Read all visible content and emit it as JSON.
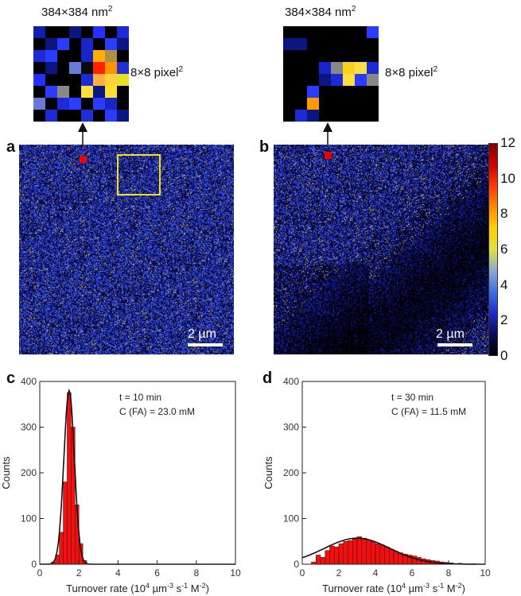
{
  "panels": {
    "a": {
      "letter": "a",
      "zoom_size": "384×384 nm",
      "zoom_size_sup": "2",
      "zoom_pixels": "8×8 pixel",
      "zoom_pixels_sup": "2",
      "scale_bar": "2 µm"
    },
    "b": {
      "letter": "b",
      "zoom_size": "384×384 nm",
      "zoom_size_sup": "2",
      "zoom_pixels": "8×8 pixel",
      "zoom_pixels_sup": "2",
      "scale_bar": "2 µm"
    },
    "c": {
      "letter": "c",
      "ann_time": "t = 10 min",
      "ann_conc": "C (FA) = 23.0 mM"
    },
    "d": {
      "letter": "d",
      "ann_time": "t = 30 min",
      "ann_conc": "C (FA) = 11.5 mM"
    }
  },
  "colorbar": {
    "ticks": [
      "12",
      "10",
      "8",
      "6",
      "4",
      "2",
      "0"
    ],
    "stops": [
      "#000000",
      "#0a0a5a",
      "#1e2ccc",
      "#3f6fe0",
      "#8fa8d0",
      "#e0e040",
      "#ffd000",
      "#ff8a00",
      "#ff3a00",
      "#cc0000",
      "#800000"
    ]
  },
  "zoom_grids": {
    "a": [
      [
        "#0f1fb0",
        "#000000",
        "#000000",
        "#0b1680",
        "#000000",
        "#2430ff",
        "#000000",
        "#1c2ad8"
      ],
      [
        "#000000",
        "#0b1680",
        "#2a3cff",
        "#000000",
        "#1826c8",
        "#000000",
        "#2a3cff",
        "#0b1680"
      ],
      [
        "#1c2ad8",
        "#2a3cff",
        "#000000",
        "#000000",
        "#1826c8",
        "#ffb000",
        "#b09040",
        "#000000"
      ],
      [
        "#000000",
        "#0b1680",
        "#000000",
        "#6a7ad8",
        "#0a0a0a",
        "#ff2000",
        "#ff9400",
        "#2030d0"
      ],
      [
        "#2430ff",
        "#000000",
        "#000000",
        "#000000",
        "#1c2ad8",
        "#ffb040",
        "#ffd040",
        "#e8e020"
      ],
      [
        "#000000",
        "#2a3cff",
        "#888888",
        "#000000",
        "#ffe040",
        "#0b1680",
        "#ffe030",
        "#000000"
      ],
      [
        "#6a7ad8",
        "#000000",
        "#1c2ad8",
        "#2a3cff",
        "#000000",
        "#2a3cff",
        "#1826c8",
        "#000000"
      ],
      [
        "#000000",
        "#1c2ad8",
        "#000000",
        "#000000",
        "#2030d0",
        "#000000",
        "#2a3cff",
        "#0b1680"
      ]
    ],
    "b": [
      [
        "#000000",
        "#000000",
        "#000000",
        "#000000",
        "#000000",
        "#000000",
        "#000000",
        "#2a3cff"
      ],
      [
        "#0b1680",
        "#0b1680",
        "#000000",
        "#000000",
        "#000000",
        "#000000",
        "#000000",
        "#000000"
      ],
      [
        "#000000",
        "#000000",
        "#000000",
        "#000000",
        "#000000",
        "#000000",
        "#000000",
        "#000000"
      ],
      [
        "#000000",
        "#000000",
        "#000000",
        "#1826c8",
        "#888888",
        "#ffd020",
        "#ffe040",
        "#1c2ad8"
      ],
      [
        "#000000",
        "#000000",
        "#000000",
        "#0b1680",
        "#1c2ad8",
        "#ffe040",
        "#2a3cff",
        "#888888"
      ],
      [
        "#000000",
        "#000000",
        "#2a3cff",
        "#000000",
        "#000000",
        "#000000",
        "#000000",
        "#000000"
      ],
      [
        "#000000",
        "#000000",
        "#ff9a00",
        "#000000",
        "#000000",
        "#000000",
        "#000000",
        "#000000"
      ],
      [
        "#000000",
        "#1c2ad8",
        "#0b1680",
        "#000000",
        "#000000",
        "#000000",
        "#000000",
        "#000000"
      ]
    ]
  },
  "chart_data": [
    {
      "panel": "c",
      "type": "bar",
      "xlabel": "Turnover rate (10",
      "xlabel_sup": "4",
      "xlabel_rest": " µm",
      "xlabel_sup2": "-3",
      "xlabel_rest2": " s",
      "xlabel_sup3": "-1",
      "xlabel_rest3": " M",
      "xlabel_sup4": "-2",
      "xlabel_end": ")",
      "ylabel": "Counts",
      "xlim": [
        0,
        10
      ],
      "ylim": [
        0,
        400
      ],
      "xticks": [
        "0",
        "2",
        "4",
        "6",
        "8",
        "10"
      ],
      "yticks": [
        "0",
        "100",
        "200",
        "300",
        "400"
      ],
      "bin_width": 0.2,
      "bins": [
        {
          "x": 0.6,
          "count": 5
        },
        {
          "x": 0.8,
          "count": 20
        },
        {
          "x": 1.0,
          "count": 70
        },
        {
          "x": 1.2,
          "count": 180
        },
        {
          "x": 1.4,
          "count": 375
        },
        {
          "x": 1.6,
          "count": 300
        },
        {
          "x": 1.8,
          "count": 130
        },
        {
          "x": 2.0,
          "count": 45
        },
        {
          "x": 2.2,
          "count": 8
        }
      ],
      "fit": {
        "type": "gaussian",
        "amplitude": 380,
        "center": 1.5,
        "sigma": 0.27
      }
    },
    {
      "panel": "d",
      "type": "bar",
      "xlabel": "Turnover rate (10",
      "xlabel_sup": "4",
      "xlabel_rest": " µm",
      "xlabel_sup2": "-3",
      "xlabel_rest2": " s",
      "xlabel_sup3": "-1",
      "xlabel_rest3": " M",
      "xlabel_sup4": "-2",
      "xlabel_end": ")",
      "ylabel": "Counts",
      "xlim": [
        0,
        10
      ],
      "ylim": [
        0,
        400
      ],
      "xticks": [
        "0",
        "2",
        "4",
        "6",
        "8",
        "10"
      ],
      "yticks": [
        "0",
        "100",
        "200",
        "300",
        "400"
      ],
      "bin_width": 0.25,
      "bins": [
        {
          "x": 0.5,
          "count": 5
        },
        {
          "x": 0.75,
          "count": 20
        },
        {
          "x": 1.0,
          "count": 15
        },
        {
          "x": 1.25,
          "count": 30
        },
        {
          "x": 1.5,
          "count": 40
        },
        {
          "x": 1.75,
          "count": 38
        },
        {
          "x": 2.0,
          "count": 45
        },
        {
          "x": 2.25,
          "count": 50
        },
        {
          "x": 2.5,
          "count": 52
        },
        {
          "x": 2.75,
          "count": 55
        },
        {
          "x": 3.0,
          "count": 60
        },
        {
          "x": 3.25,
          "count": 57
        },
        {
          "x": 3.5,
          "count": 53
        },
        {
          "x": 3.75,
          "count": 50
        },
        {
          "x": 4.0,
          "count": 45
        },
        {
          "x": 4.25,
          "count": 42
        },
        {
          "x": 4.5,
          "count": 38
        },
        {
          "x": 4.75,
          "count": 33
        },
        {
          "x": 5.0,
          "count": 28
        },
        {
          "x": 5.25,
          "count": 25
        },
        {
          "x": 5.5,
          "count": 22
        },
        {
          "x": 5.75,
          "count": 20
        },
        {
          "x": 6.0,
          "count": 18
        },
        {
          "x": 6.25,
          "count": 15
        },
        {
          "x": 6.5,
          "count": 12
        },
        {
          "x": 6.75,
          "count": 10
        },
        {
          "x": 7.0,
          "count": 8
        },
        {
          "x": 7.25,
          "count": 7
        },
        {
          "x": 7.5,
          "count": 5
        },
        {
          "x": 7.75,
          "count": 4
        },
        {
          "x": 8.0,
          "count": 3
        },
        {
          "x": 8.5,
          "count": 2
        },
        {
          "x": 9.25,
          "count": 1
        }
      ],
      "fit": {
        "type": "gaussian",
        "amplitude": 57,
        "center": 3.0,
        "sigma": 1.8
      }
    }
  ]
}
